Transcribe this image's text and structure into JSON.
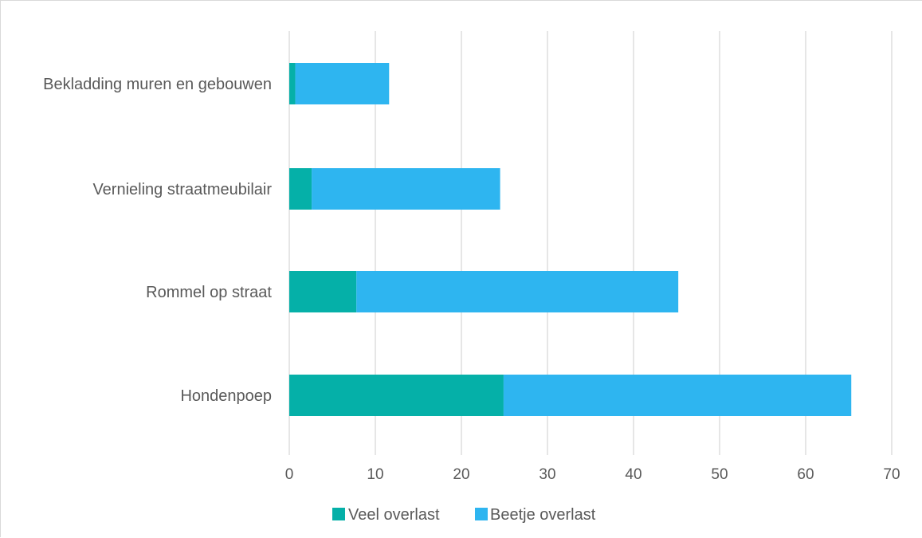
{
  "chart_data": {
    "type": "bar",
    "orientation": "horizontal",
    "stacked": true,
    "categories": [
      "Bekladding muren en gebouwen",
      "Vernieling straatmeubilair",
      "Rommel op straat",
      "Hondenpoep"
    ],
    "series": [
      {
        "name": "Veel overlast",
        "color": "#05b0a8",
        "values": [
          0.7,
          2.6,
          7.8,
          24.9
        ]
      },
      {
        "name": "Beetje overlast",
        "color": "#2eb5f0",
        "values": [
          10.9,
          21.9,
          37.4,
          40.4
        ]
      }
    ],
    "xlim": [
      0,
      70
    ],
    "xticks": [
      "0",
      "10",
      "20",
      "30",
      "40",
      "50",
      "60",
      "70"
    ],
    "grid": true,
    "legend": "bottom",
    "title": "",
    "xlabel": "",
    "ylabel": ""
  }
}
